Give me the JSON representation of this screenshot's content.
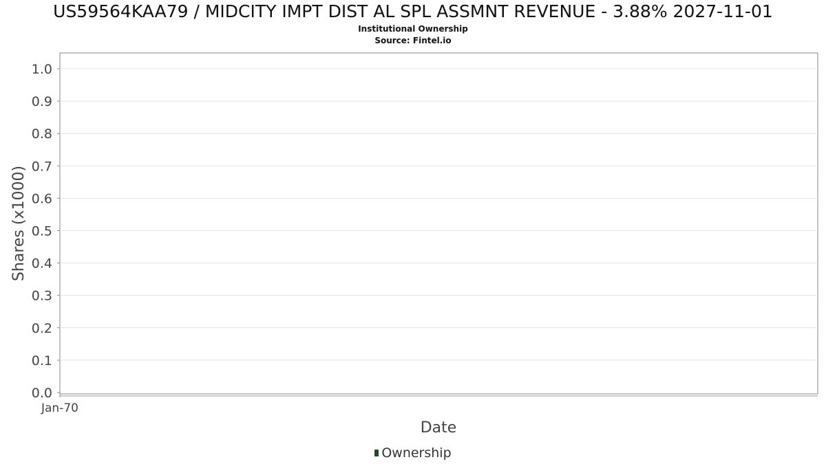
{
  "header": {
    "title": "US59564KAA79 / MIDCITY IMPT DIST AL SPL ASSMNT REVENUE - 3.88% 2027-11-01",
    "subtitle": "Institutional Ownership",
    "source": "Source: Fintel.io"
  },
  "chart_data": {
    "type": "line",
    "title": "US59564KAA79 / MIDCITY IMPT DIST AL SPL ASSMNT REVENUE - 3.88% 2027-11-01",
    "subtitle": "Institutional Ownership",
    "xlabel": "Date",
    "ylabel": "Shares (x1000)",
    "ylim": [
      0,
      1.0
    ],
    "yticks": [
      "0.0",
      "0.1",
      "0.2",
      "0.3",
      "0.4",
      "0.5",
      "0.6",
      "0.7",
      "0.8",
      "0.9",
      "1.0"
    ],
    "xticks": [
      "Jan-70"
    ],
    "grid": true,
    "legend_position": "bottom-center",
    "series": [
      {
        "name": "Ownership",
        "color": "#1f4d2b",
        "x": [],
        "y": []
      }
    ]
  },
  "legend": {
    "items": [
      {
        "label": "Ownership",
        "color": "#1f4d2b"
      }
    ]
  }
}
